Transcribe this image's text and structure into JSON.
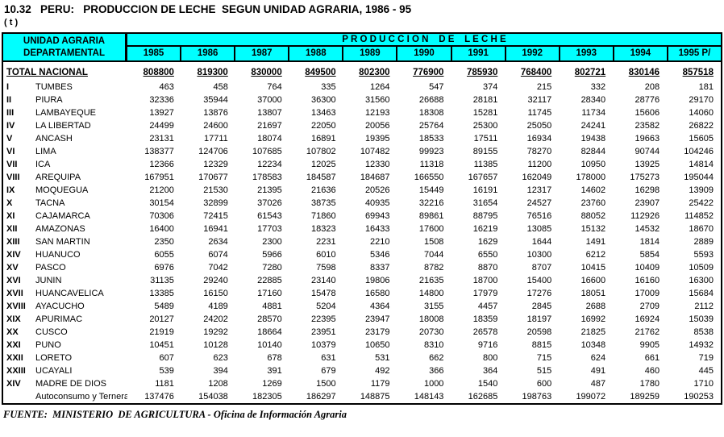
{
  "page": {
    "title": "10.32   PERU:   PRODUCCION DE LECHE  SEGUN UNIDAD AGRARIA, 1986 - 95",
    "unit": "( t )",
    "source": "FUENTE:  MINISTERIO  DE AGRICULTURA - Oficina de Información Agraria"
  },
  "colors": {
    "header_bg": "#00FFFF",
    "border": "#000000",
    "text": "#000000",
    "page_bg": "#FFFFFF"
  },
  "chart_data": {
    "type": "table",
    "title": "10.32 PERU: PRODUCCION DE LECHE SEGUN UNIDAD AGRARIA, 1986 - 95",
    "unit": "( t )",
    "header": {
      "stub_line1": "UNIDAD   AGRARIA",
      "stub_line2": "DEPARTAMENTAL",
      "group_header": "P R O D U C C I O N    D E    L E C H E",
      "columns": [
        "1985",
        "1986",
        "1987",
        "1988",
        "1989",
        "1990",
        "1991",
        "1992",
        "1993",
        "1994",
        "1995 P/"
      ]
    },
    "total_row": {
      "label": "TOTAL NACIONAL",
      "values": [
        808800,
        819300,
        830000,
        849500,
        802300,
        776900,
        785930,
        768400,
        802721,
        830146,
        857518
      ]
    },
    "rows": [
      {
        "roman": "I",
        "name": "TUMBES",
        "values": [
          463,
          458,
          764,
          335,
          1264,
          547,
          374,
          215,
          332,
          208,
          181
        ]
      },
      {
        "roman": "II",
        "name": "PIURA",
        "values": [
          32336,
          35944,
          37000,
          36300,
          31560,
          26688,
          28181,
          32117,
          28340,
          28776,
          29170
        ]
      },
      {
        "roman": "III",
        "name": "LAMBAYEQUE",
        "values": [
          13927,
          13876,
          13807,
          13463,
          12193,
          18308,
          15281,
          11745,
          11734,
          15606,
          14060
        ]
      },
      {
        "roman": "IV",
        "name": "LA LIBERTAD",
        "values": [
          24499,
          24600,
          21697,
          22050,
          20056,
          25764,
          25300,
          25050,
          24241,
          23582,
          26822
        ]
      },
      {
        "roman": "V",
        "name": "ANCASH",
        "values": [
          23131,
          17711,
          18074,
          16891,
          19395,
          18533,
          17511,
          16934,
          19438,
          19663,
          15605
        ]
      },
      {
        "roman": "VI",
        "name": "LIMA",
        "values": [
          138377,
          124706,
          107685,
          107802,
          107482,
          99923,
          89155,
          78270,
          82844,
          90744,
          104246
        ]
      },
      {
        "roman": "VII",
        "name": "ICA",
        "values": [
          12366,
          12329,
          12234,
          12025,
          12330,
          11318,
          11385,
          11200,
          10950,
          13925,
          14814
        ]
      },
      {
        "roman": "VIII",
        "name": "AREQUIPA",
        "values": [
          167951,
          170677,
          178583,
          184587,
          184687,
          166550,
          167657,
          162049,
          178000,
          175273,
          195044
        ]
      },
      {
        "roman": "IX",
        "name": "MOQUEGUA",
        "values": [
          21200,
          21530,
          21395,
          21636,
          20526,
          15449,
          16191,
          12317,
          14602,
          16298,
          13909
        ]
      },
      {
        "roman": "X",
        "name": "TACNA",
        "values": [
          30154,
          32899,
          37026,
          38735,
          40935,
          32216,
          31654,
          24527,
          23760,
          23907,
          25422
        ]
      },
      {
        "roman": "XI",
        "name": "CAJAMARCA",
        "values": [
          70306,
          72415,
          61543,
          71860,
          69943,
          89861,
          88795,
          76516,
          88052,
          112926,
          114852
        ]
      },
      {
        "roman": "XII",
        "name": "AMAZONAS",
        "values": [
          16400,
          16941,
          17703,
          18323,
          16433,
          17600,
          16219,
          13085,
          15132,
          14532,
          18670
        ]
      },
      {
        "roman": "XIII",
        "name": "SAN MARTIN",
        "values": [
          2350,
          2634,
          2300,
          2231,
          2210,
          1508,
          1629,
          1644,
          1491,
          1814,
          2889
        ]
      },
      {
        "roman": "XIV",
        "name": "HUANUCO",
        "values": [
          6055,
          6074,
          5966,
          6010,
          5346,
          7044,
          6550,
          10300,
          6212,
          5854,
          5593
        ]
      },
      {
        "roman": "XV",
        "name": "PASCO",
        "values": [
          6976,
          7042,
          7280,
          7598,
          8337,
          8782,
          8870,
          8707,
          10415,
          10409,
          10509
        ]
      },
      {
        "roman": "XVI",
        "name": "JUNIN",
        "values": [
          31135,
          29240,
          22885,
          23140,
          19806,
          21635,
          18700,
          15400,
          16600,
          16160,
          16300
        ]
      },
      {
        "roman": "XVII",
        "name": "HUANCAVELICA",
        "values": [
          13385,
          16150,
          17160,
          15478,
          16580,
          14800,
          17979,
          17276,
          18051,
          17009,
          15684
        ]
      },
      {
        "roman": "XVIII",
        "name": "AYACUCHO",
        "values": [
          5489,
          4189,
          4881,
          5204,
          4364,
          3155,
          4457,
          2845,
          2688,
          2709,
          2112
        ]
      },
      {
        "roman": "XIX",
        "name": "APURIMAC",
        "values": [
          20127,
          24202,
          28570,
          22395,
          23947,
          18008,
          18359,
          18197,
          16992,
          16924,
          15039
        ]
      },
      {
        "roman": "XX",
        "name": "CUSCO",
        "values": [
          21919,
          19292,
          18664,
          23951,
          23179,
          20730,
          26578,
          20598,
          21825,
          21762,
          8538
        ]
      },
      {
        "roman": "XXI",
        "name": "PUNO",
        "values": [
          10451,
          10128,
          10140,
          10379,
          10650,
          8310,
          9716,
          8815,
          10348,
          9905,
          14932
        ]
      },
      {
        "roman": "XXII",
        "name": "LORETO",
        "values": [
          607,
          623,
          678,
          631,
          531,
          662,
          800,
          715,
          624,
          661,
          719
        ]
      },
      {
        "roman": "XXIII",
        "name": "UCAYALI",
        "values": [
          539,
          394,
          391,
          679,
          492,
          366,
          364,
          515,
          491,
          460,
          445
        ]
      },
      {
        "roman": "XIV",
        "name": "MADRE DE DIOS",
        "values": [
          1181,
          1208,
          1269,
          1500,
          1179,
          1000,
          1540,
          600,
          487,
          1780,
          1710
        ]
      },
      {
        "roman": "",
        "name": "Autoconsumo y Terneraje",
        "values": [
          137476,
          154038,
          182305,
          186297,
          148875,
          148143,
          162685,
          198763,
          199072,
          189259,
          190253
        ]
      }
    ],
    "source": "FUENTE: MINISTERIO DE AGRICULTURA - Oficina de Información Agraria"
  }
}
